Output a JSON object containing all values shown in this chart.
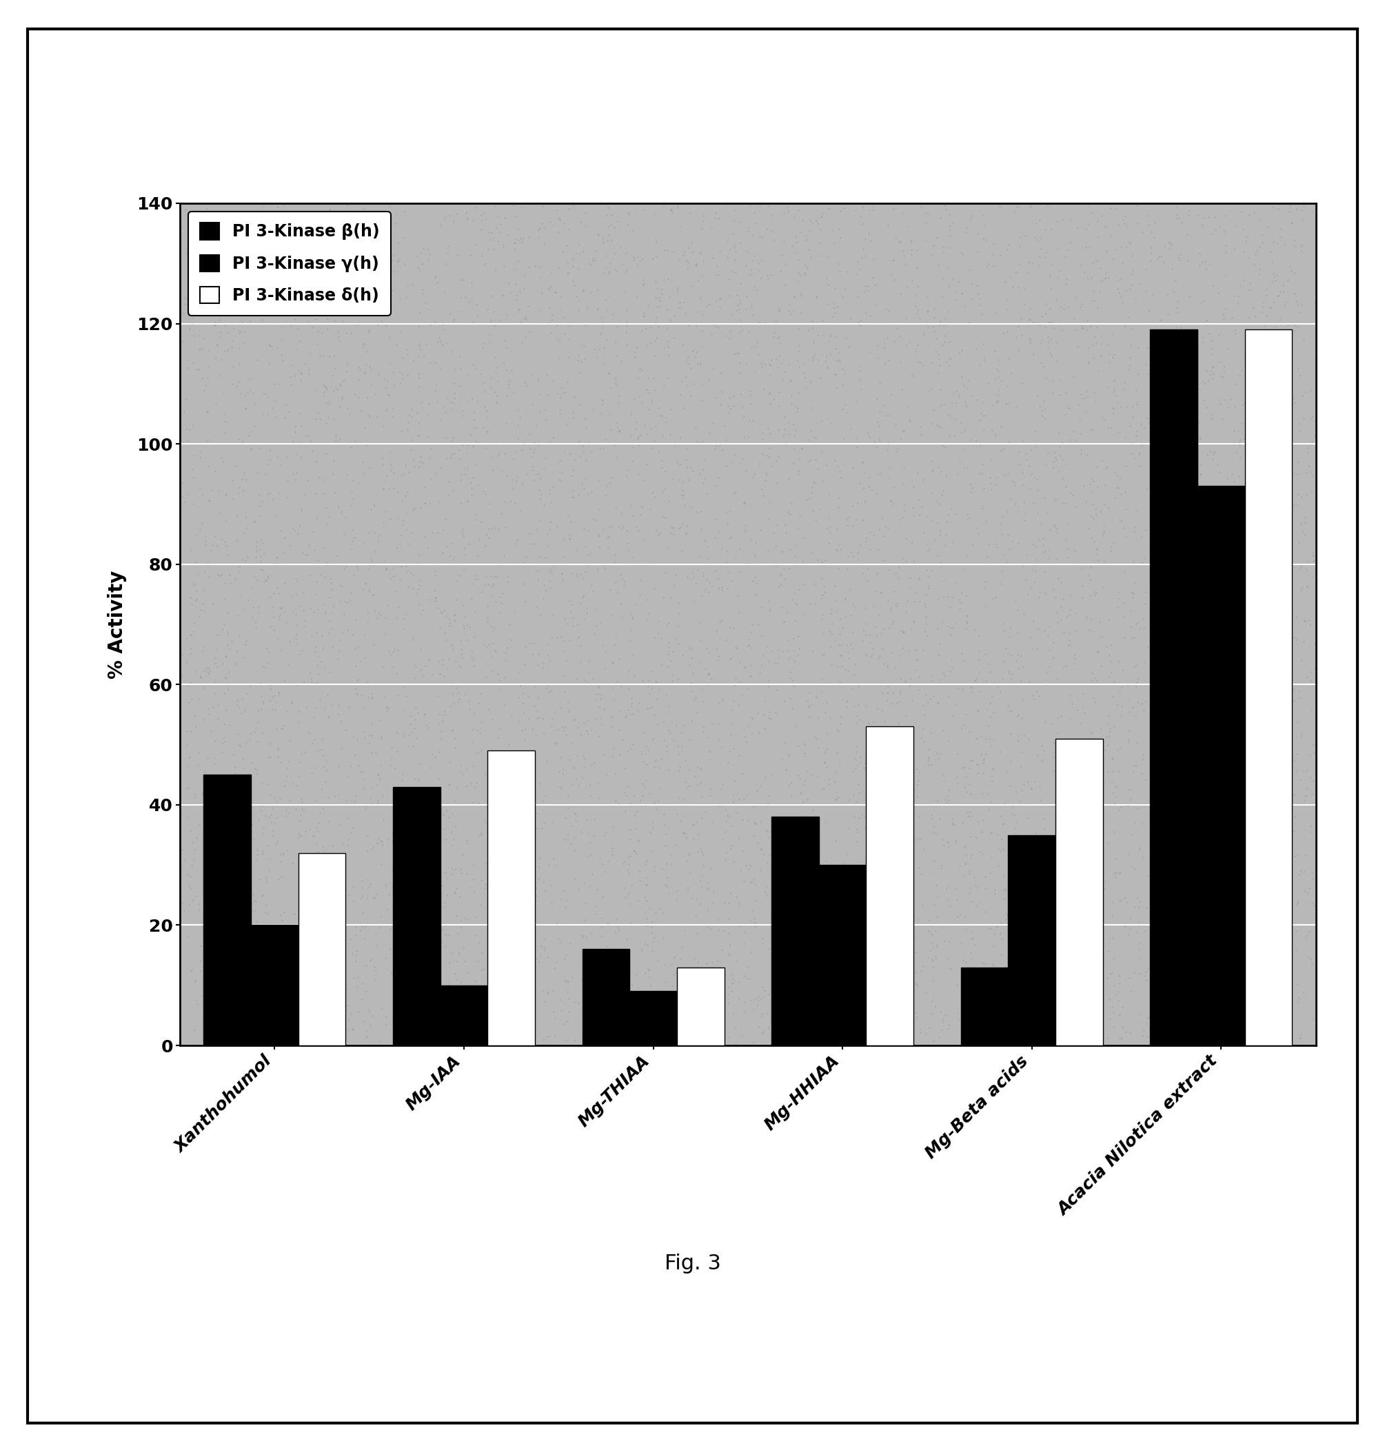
{
  "categories": [
    "Xanthohumol",
    "Mg-IAA",
    "Mg-THIAA",
    "Mg-HHIAA",
    "Mg-Beta acids",
    "Acacia Nilotica extract"
  ],
  "series": [
    {
      "label": "PI 3-Kinase β(h)",
      "color": "#000000",
      "values": [
        45,
        43,
        16,
        38,
        13,
        119
      ]
    },
    {
      "label": "PI 3-Kinase γ(h)",
      "color": "#000000",
      "values": [
        20,
        10,
        9,
        30,
        35,
        93
      ]
    },
    {
      "label": "PI 3-Kinase δ(h)",
      "color": "#ffffff",
      "values": [
        32,
        49,
        13,
        53,
        51,
        119
      ]
    }
  ],
  "ylabel": "% Activity",
  "ylim": [
    0,
    140
  ],
  "yticks": [
    0,
    20,
    40,
    60,
    80,
    100,
    120,
    140
  ],
  "background_color": "#ffffff",
  "plot_bg_color": "#b8b8b8",
  "grid_color": "#ffffff",
  "bar_edge_color": "#000000",
  "figure_caption": "Fig. 3",
  "bar_width": 0.25,
  "legend_labels": [
    "PI 3-Kinase β(h)",
    "PI 3-Kinase γ(h)",
    "PI 3-Kinase δ(h)"
  ],
  "legend_colors": [
    "#000000",
    "#000000",
    "#ffffff"
  ]
}
